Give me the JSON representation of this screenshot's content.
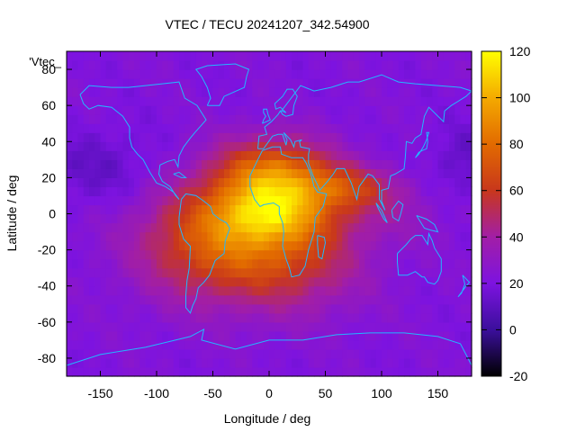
{
  "chart_data": {
    "type": "heatmap",
    "title": "VTEC / TECU 20241207_342.54900",
    "xlabel": "Longitude / deg",
    "ylabel": "Latitude / deg",
    "series_label": "'Vtec_",
    "xlim": [
      -180,
      180
    ],
    "ylim": [
      -90,
      90
    ],
    "xticks": [
      -150,
      -100,
      -50,
      0,
      50,
      100,
      150
    ],
    "yticks": [
      -80,
      -60,
      -40,
      -20,
      0,
      20,
      40,
      60,
      80
    ],
    "colorbar": {
      "range": [
        -20,
        120
      ],
      "ticks": [
        -20,
        0,
        20,
        40,
        60,
        80,
        100,
        120
      ],
      "colors": [
        "#000000",
        "#3b0f9c",
        "#7d13e0",
        "#a21ea6",
        "#c8371c",
        "#e26a00",
        "#f4aa00",
        "#ffff00"
      ]
    },
    "field": {
      "background_tecu": 22,
      "peaks": [
        {
          "lon": 5,
          "lat": 22,
          "value_tecu": 80,
          "lon_width": 38,
          "lat_width": 14
        },
        {
          "lon": 0,
          "lat": 0,
          "value_tecu": 72,
          "lon_width": 35,
          "lat_width": 12
        },
        {
          "lon": -55,
          "lat": -15,
          "value_tecu": 66,
          "lon_width": 45,
          "lat_width": 22
        },
        {
          "lon": 20,
          "lat": -25,
          "value_tecu": 56,
          "lon_width": 45,
          "lat_width": 20
        },
        {
          "lon": 70,
          "lat": 15,
          "value_tecu": 50,
          "lon_width": 30,
          "lat_width": 8
        },
        {
          "lon": 90,
          "lat": 2,
          "value_tecu": 34,
          "lon_width": 45,
          "lat_width": 12
        }
      ],
      "lows": [
        {
          "lon": -150,
          "lat": 25,
          "depth_tecu": 10,
          "lon_width": 40,
          "lat_width": 15
        },
        {
          "lon": 175,
          "lat": 28,
          "depth_tecu": 10,
          "lon_width": 25,
          "lat_width": 15
        }
      ]
    }
  }
}
